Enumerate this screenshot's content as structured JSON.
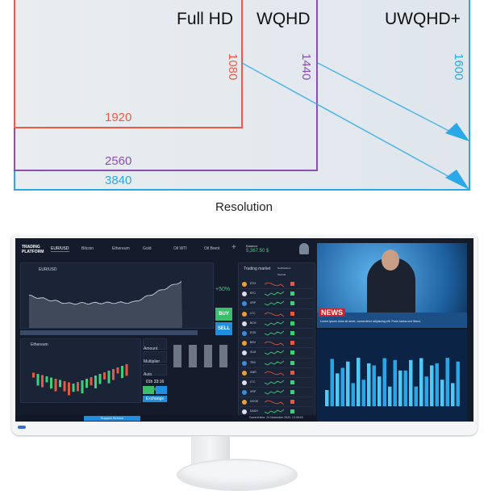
{
  "diagram": {
    "labels": {
      "full_hd": "Full HD",
      "wqhd": "WQHD",
      "uwqhd_plus": "UWQHD+"
    },
    "widths": {
      "full_hd": "1920",
      "wqhd": "2560",
      "uwqhd_plus": "3840"
    },
    "heights": {
      "full_hd": "1080",
      "wqhd": "1440",
      "uwqhd_plus": "1600"
    },
    "caption": "Resolution",
    "colors": {
      "full_hd": "#ee5a44",
      "wqhd": "#8a4fb0",
      "uwqhd_plus": "#2aa8e8"
    }
  },
  "screen": {
    "platform_title": "TRADING PLATFORM",
    "tabs": [
      "EUR/USD",
      "Bitcoin",
      "Ethereum",
      "Gold",
      "Oil WTI",
      "Oil Brent"
    ],
    "balance_label": "Balance",
    "balance_value": "5,367.50 $",
    "pair": "EUR/USD",
    "secondary_pair": "Ethereum",
    "percent": "+50%",
    "buy": "BUY",
    "sell": "SELL",
    "amount_label": "Amount",
    "multiplier_label": "Multiplier",
    "auto_closing_label": "Auto Closing",
    "timer": "01h 33:16",
    "exchange": "Exchange",
    "market_title": "Trading market",
    "notifications": "Notifications",
    "sounds": "Sounds",
    "support": "Support Service",
    "current_time": "Current time: 24 November 2022, 13:35:43",
    "news_badge": "NEWS",
    "news_ticker": "Lorem ipsum dolor sit amet, consectetur adipiscing elit. Proin luctus orci libero.",
    "market_items": [
      "ETH",
      "BTC",
      "XRP",
      "LTC",
      "BCH",
      "EOS",
      "BSV",
      "XLM",
      "TRX",
      "XMR",
      "LTC",
      "XRP",
      "DOGE",
      "DASH"
    ]
  }
}
